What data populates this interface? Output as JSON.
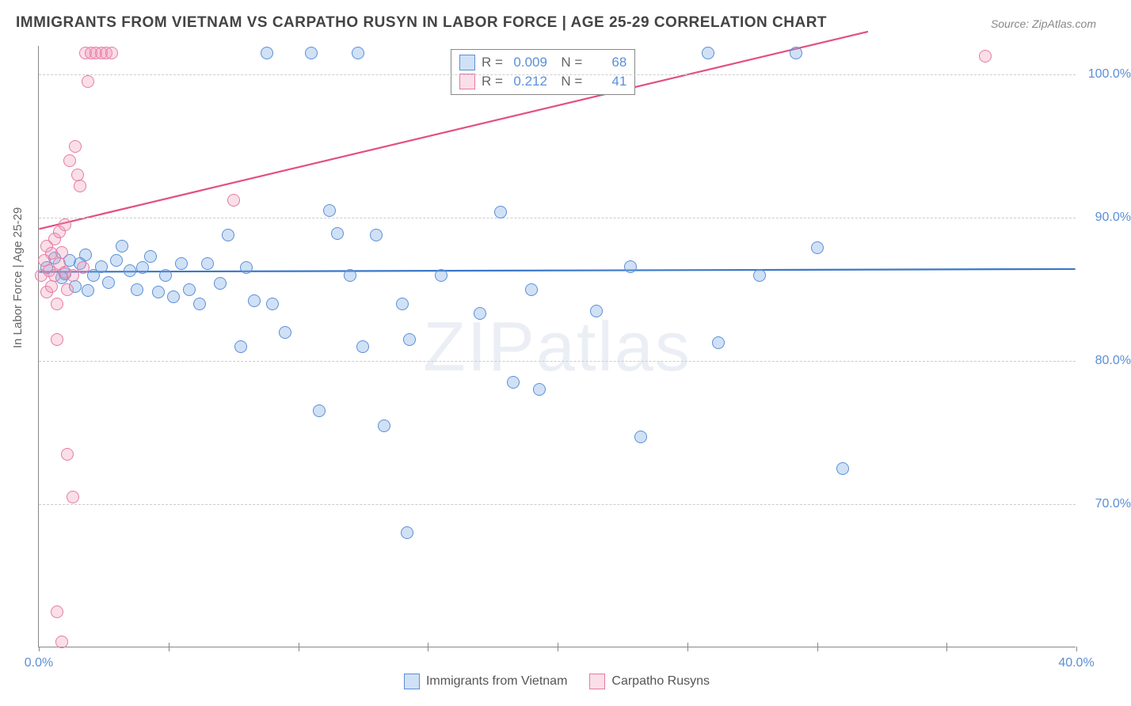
{
  "title": "IMMIGRANTS FROM VIETNAM VS CARPATHO RUSYN IN LABOR FORCE | AGE 25-29 CORRELATION CHART",
  "source": "Source: ZipAtlas.com",
  "ylabel": "In Labor Force | Age 25-29",
  "watermark_a": "ZIP",
  "watermark_b": "atlas",
  "chart": {
    "type": "scatter",
    "background_color": "#ffffff",
    "grid_color": "#cccccc",
    "axis_color": "#888888",
    "tick_label_color": "#5b8fd6",
    "marker_size": 16,
    "marker_border_width": 1.5,
    "xlim": [
      0,
      40
    ],
    "ylim": [
      60,
      102
    ],
    "xticks": [
      0,
      5,
      10,
      15,
      20,
      25,
      30,
      35,
      40
    ],
    "xtick_labels": [
      "0.0%",
      "",
      "",
      "",
      "",
      "",
      "",
      "",
      "40.0%"
    ],
    "yticks": [
      70,
      80,
      90,
      100
    ],
    "ytick_labels": [
      "70.0%",
      "80.0%",
      "90.0%",
      "100.0%"
    ],
    "stats": [
      {
        "color": "blue",
        "R": "0.009",
        "N": "68"
      },
      {
        "color": "pink",
        "R": "0.212",
        "N": "41"
      }
    ],
    "series": [
      {
        "name": "Immigrants from Vietnam",
        "color_class": "blue",
        "fill": "rgba(120,170,230,0.35)",
        "stroke": "#5b8fd6",
        "regression": {
          "x0": 0,
          "y0": 86.2,
          "x1": 40,
          "y1": 86.4,
          "stroke": "#3b78c9",
          "width": 2.2
        },
        "points": [
          [
            0.3,
            86.5
          ],
          [
            0.6,
            87.2
          ],
          [
            0.9,
            85.8
          ],
          [
            1.0,
            86.1
          ],
          [
            1.2,
            87.0
          ],
          [
            1.4,
            85.2
          ],
          [
            1.6,
            86.8
          ],
          [
            1.8,
            87.4
          ],
          [
            1.9,
            84.9
          ],
          [
            2.1,
            86.0
          ],
          [
            2.4,
            86.6
          ],
          [
            2.7,
            85.5
          ],
          [
            3.0,
            87.0
          ],
          [
            3.2,
            88.0
          ],
          [
            3.5,
            86.3
          ],
          [
            3.8,
            85.0
          ],
          [
            4.0,
            86.5
          ],
          [
            4.3,
            87.3
          ],
          [
            4.6,
            84.8
          ],
          [
            4.9,
            86.0
          ],
          [
            5.2,
            84.5
          ],
          [
            5.5,
            86.8
          ],
          [
            5.8,
            85.0
          ],
          [
            6.2,
            84.0
          ],
          [
            6.5,
            86.8
          ],
          [
            7.0,
            85.4
          ],
          [
            7.3,
            88.8
          ],
          [
            7.8,
            81.0
          ],
          [
            8.0,
            86.5
          ],
          [
            8.3,
            84.2
          ],
          [
            8.8,
            101.5
          ],
          [
            9.0,
            84.0
          ],
          [
            9.5,
            82.0
          ],
          [
            10.5,
            101.5
          ],
          [
            10.8,
            76.5
          ],
          [
            11.2,
            90.5
          ],
          [
            11.5,
            88.9
          ],
          [
            12.0,
            86.0
          ],
          [
            12.3,
            101.5
          ],
          [
            12.5,
            81.0
          ],
          [
            13.0,
            88.8
          ],
          [
            13.3,
            75.5
          ],
          [
            14.0,
            84.0
          ],
          [
            14.2,
            68.0
          ],
          [
            14.3,
            81.5
          ],
          [
            15.5,
            86.0
          ],
          [
            17.0,
            83.3
          ],
          [
            17.8,
            90.4
          ],
          [
            18.3,
            78.5
          ],
          [
            19.0,
            85.0
          ],
          [
            19.3,
            78.0
          ],
          [
            21.5,
            83.5
          ],
          [
            22.8,
            86.6
          ],
          [
            23.2,
            74.7
          ],
          [
            25.8,
            101.5
          ],
          [
            26.2,
            81.3
          ],
          [
            27.8,
            86.0
          ],
          [
            29.2,
            101.5
          ],
          [
            30.0,
            87.9
          ],
          [
            31.0,
            72.5
          ]
        ]
      },
      {
        "name": "Carpatho Rusyns",
        "color_class": "pink",
        "fill": "rgba(240,150,180,0.3)",
        "stroke": "#e77aa3",
        "regression": {
          "x0": 0,
          "y0": 89.2,
          "x1": 32,
          "y1": 103,
          "stroke": "#e24f85",
          "width": 2.2
        },
        "points": [
          [
            0.1,
            86.0
          ],
          [
            0.2,
            87.0
          ],
          [
            0.3,
            84.8
          ],
          [
            0.3,
            88.0
          ],
          [
            0.4,
            86.3
          ],
          [
            0.5,
            85.2
          ],
          [
            0.5,
            87.5
          ],
          [
            0.6,
            86.0
          ],
          [
            0.6,
            88.5
          ],
          [
            0.7,
            84.0
          ],
          [
            0.8,
            89.0
          ],
          [
            0.8,
            86.8
          ],
          [
            0.9,
            87.6
          ],
          [
            1.0,
            86.2
          ],
          [
            1.0,
            89.5
          ],
          [
            1.1,
            85.0
          ],
          [
            1.2,
            94.0
          ],
          [
            1.3,
            86.0
          ],
          [
            1.4,
            95.0
          ],
          [
            1.5,
            93.0
          ],
          [
            1.6,
            92.2
          ],
          [
            1.7,
            86.5
          ],
          [
            1.8,
            101.5
          ],
          [
            1.9,
            99.5
          ],
          [
            2.0,
            101.5
          ],
          [
            2.2,
            101.5
          ],
          [
            2.4,
            101.5
          ],
          [
            2.6,
            101.5
          ],
          [
            2.8,
            101.5
          ],
          [
            0.7,
            81.5
          ],
          [
            1.1,
            73.5
          ],
          [
            1.3,
            70.5
          ],
          [
            0.7,
            62.5
          ],
          [
            0.9,
            60.4
          ],
          [
            7.5,
            91.2
          ],
          [
            36.5,
            101.3
          ]
        ]
      }
    ],
    "bottom_legend": [
      {
        "swatch": "blue",
        "label": "Immigrants from Vietnam"
      },
      {
        "swatch": "pink",
        "label": "Carpatho Rusyns"
      }
    ]
  }
}
